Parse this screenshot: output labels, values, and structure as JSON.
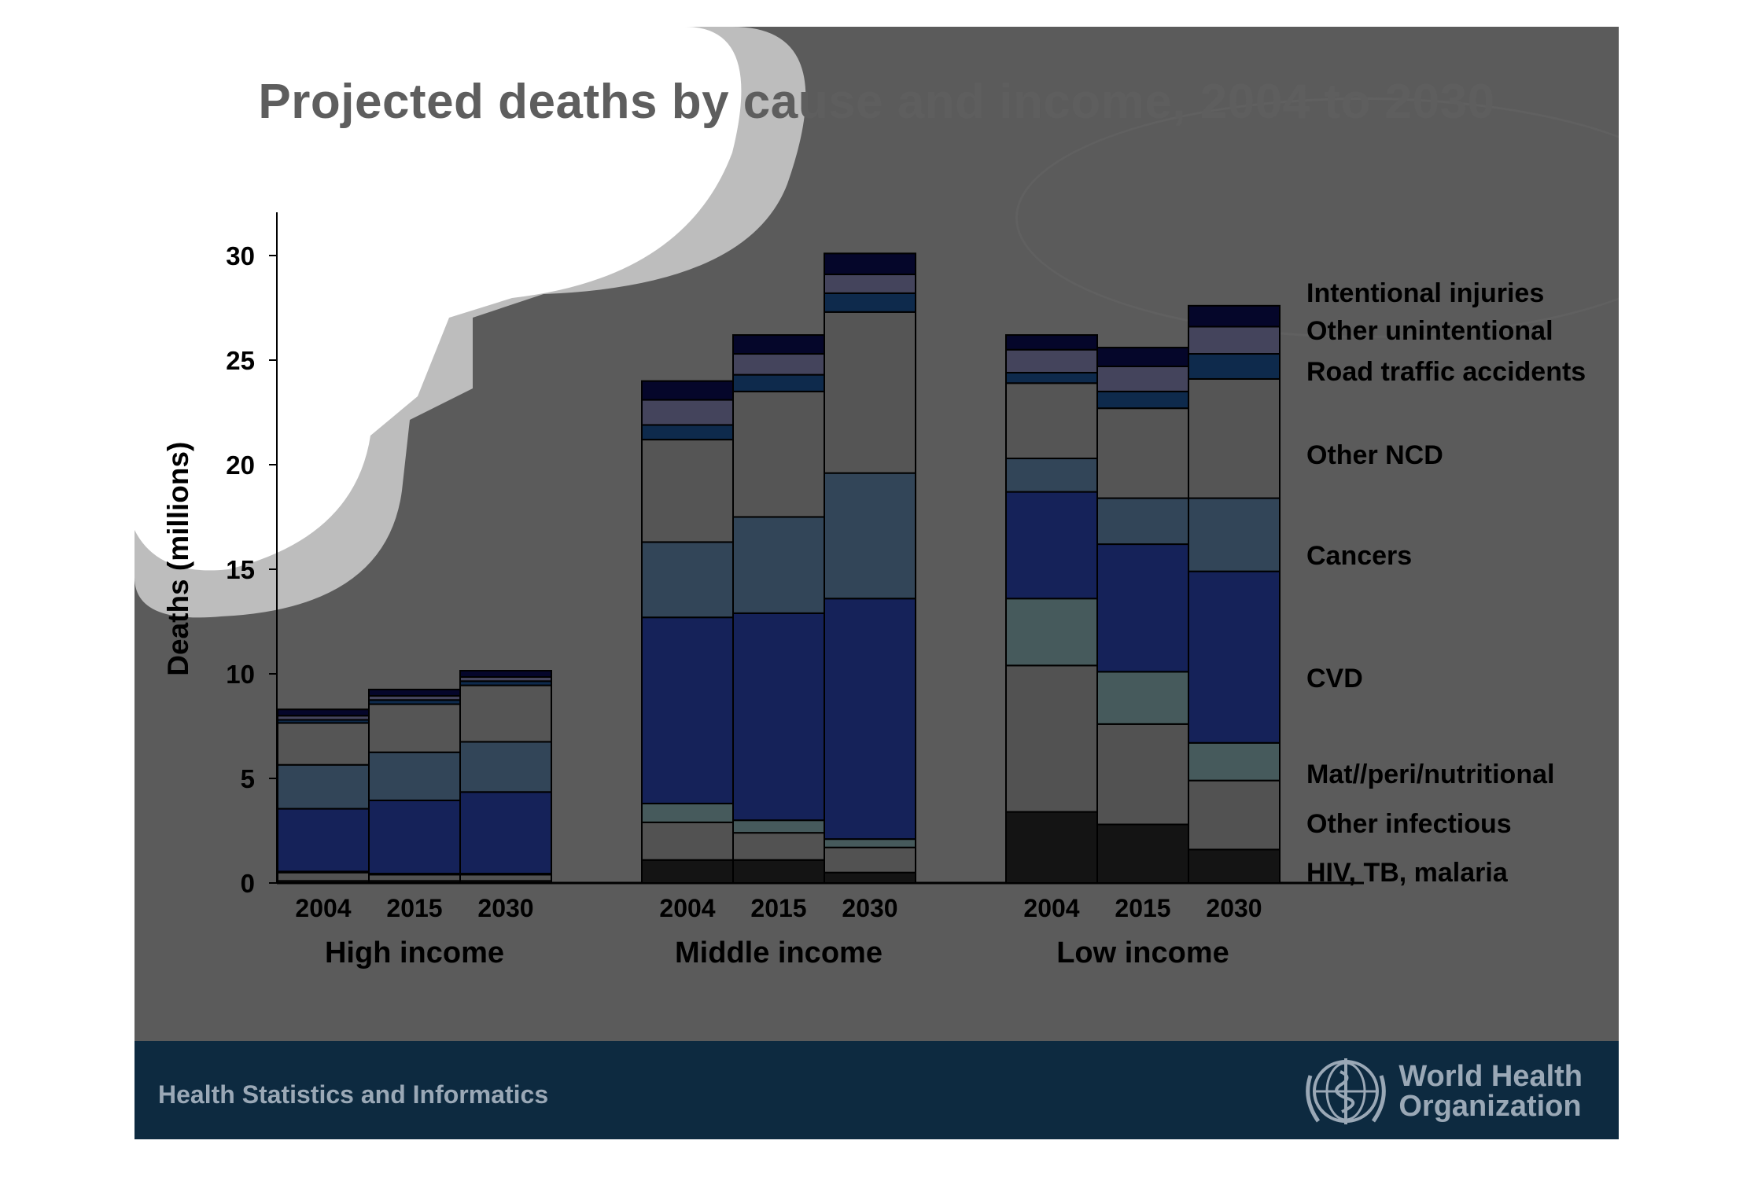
{
  "title": "Projected deaths by cause and income, 2004 to 2030",
  "footer": {
    "org_text": "Health Statistics and Informatics",
    "logo_line1": "World Health",
    "logo_line2": "Organization"
  },
  "colors": {
    "slide_background": "#5b5b5b",
    "footer_background": "#0d2a40"
  },
  "chart_data": {
    "type": "bar",
    "stacked": true,
    "ylabel": "Deaths (millions)",
    "ylim": [
      0,
      32
    ],
    "yticks": [
      0,
      5,
      10,
      15,
      20,
      25,
      30
    ],
    "legend_placement": "right, aligned with bar segments",
    "groups": [
      "High income",
      "Middle income",
      "Low income"
    ],
    "years": [
      "2004",
      "2015",
      "2030"
    ],
    "series": [
      {
        "name": "HIV, TB, malaria",
        "color": "#141414",
        "values": [
          0.1,
          0.1,
          0.1,
          1.1,
          1.1,
          0.5,
          3.4,
          2.8,
          1.6
        ]
      },
      {
        "name": "Other infectious",
        "color": "#525252",
        "values": [
          0.4,
          0.3,
          0.3,
          1.8,
          1.3,
          1.2,
          7.0,
          4.8,
          3.3
        ]
      },
      {
        "name": "Mat//peri/nutritional",
        "color": "#465a5c",
        "values": [
          0.05,
          0.05,
          0.05,
          0.9,
          0.6,
          0.4,
          3.2,
          2.5,
          1.8
        ]
      },
      {
        "name": "CVD",
        "color": "#152259",
        "values": [
          3.0,
          3.5,
          3.9,
          8.9,
          9.9,
          11.5,
          5.1,
          6.1,
          8.2
        ]
      },
      {
        "name": "Cancers",
        "color": "#324558",
        "values": [
          2.1,
          2.3,
          2.4,
          3.6,
          4.6,
          6.0,
          1.6,
          2.2,
          3.5
        ]
      },
      {
        "name": "Other NCD",
        "color": "#555555",
        "values": [
          2.0,
          2.3,
          2.7,
          4.9,
          6.0,
          7.7,
          3.6,
          4.3,
          5.7
        ]
      },
      {
        "name": "Road traffic accidents",
        "color": "#0e2a4c",
        "values": [
          0.15,
          0.2,
          0.2,
          0.7,
          0.8,
          0.9,
          0.5,
          0.8,
          1.2
        ]
      },
      {
        "name": "Other unintentional",
        "color": "#44445c",
        "values": [
          0.2,
          0.2,
          0.2,
          1.2,
          1.0,
          0.9,
          1.1,
          1.2,
          1.3
        ]
      },
      {
        "name": "Intentional injuries",
        "color": "#05062a",
        "values": [
          0.3,
          0.3,
          0.3,
          0.9,
          0.9,
          1.0,
          0.7,
          0.9,
          1.0
        ]
      }
    ]
  }
}
